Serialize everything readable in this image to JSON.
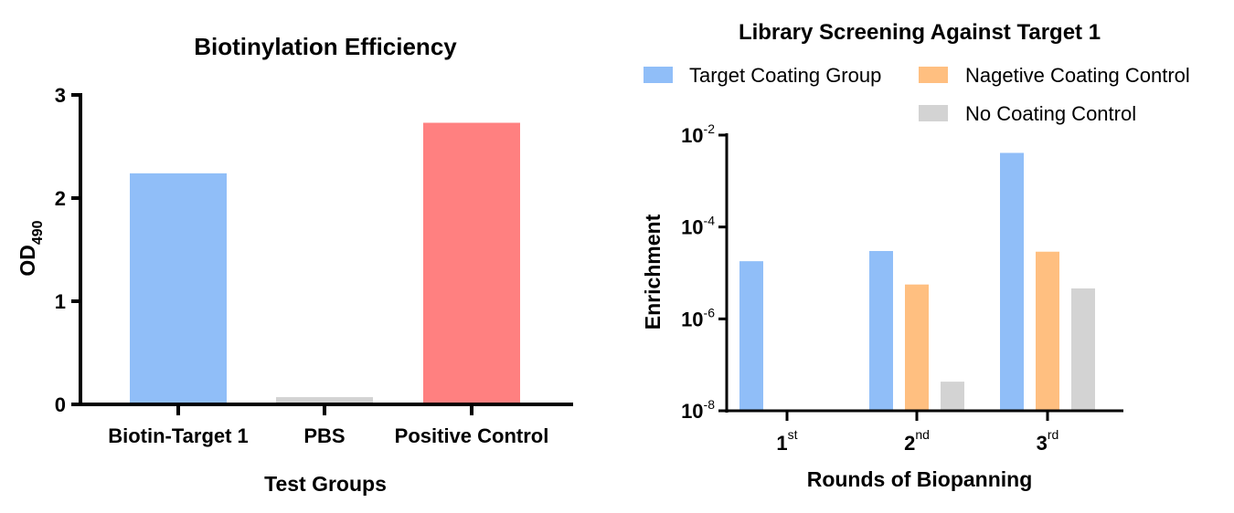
{
  "chart_data": [
    {
      "type": "bar",
      "title": "Biotinylation Efficiency",
      "xlabel": "Test Groups",
      "ylabel": {
        "main": "OD",
        "subscript": "490"
      },
      "categories": [
        "Biotin-Target 1",
        "PBS",
        "Positive Control"
      ],
      "values": [
        2.24,
        0.07,
        2.73
      ],
      "colors": [
        "#90bef8",
        "#d3d3d3",
        "#ff8080"
      ],
      "ylim": [
        0,
        3
      ],
      "yticks": [
        "0",
        "1",
        "2",
        "3"
      ],
      "grid": false
    },
    {
      "type": "bar",
      "title": "Library Screening Against Target 1",
      "xlabel": "Rounds of Biopanning",
      "ylabel": "Enrichment",
      "yscale": "log",
      "ylim": [
        1e-08,
        0.01
      ],
      "yticks": [
        {
          "base": "10",
          "exp": "-8"
        },
        {
          "base": "10",
          "exp": "-6"
        },
        {
          "base": "10",
          "exp": "-4"
        },
        {
          "base": "10",
          "exp": "-2"
        }
      ],
      "categories": [
        {
          "base": "1",
          "sup": "st"
        },
        {
          "base": "2",
          "sup": "nd"
        },
        {
          "base": "3",
          "sup": "rd"
        }
      ],
      "legend_position": "top",
      "grid": false,
      "series": [
        {
          "name": "Target Coating Group",
          "color": "#90bef8",
          "values": [
            1.8e-05,
            3e-05,
            0.0041
          ]
        },
        {
          "name": "Nagetive Coating Control",
          "color": "#ffbf80",
          "values": [
            null,
            5.6e-06,
            2.9e-05
          ]
        },
        {
          "name": "No Coating Control",
          "color": "#d3d3d3",
          "values": [
            null,
            4.3e-08,
            4.6e-06
          ]
        }
      ]
    }
  ]
}
